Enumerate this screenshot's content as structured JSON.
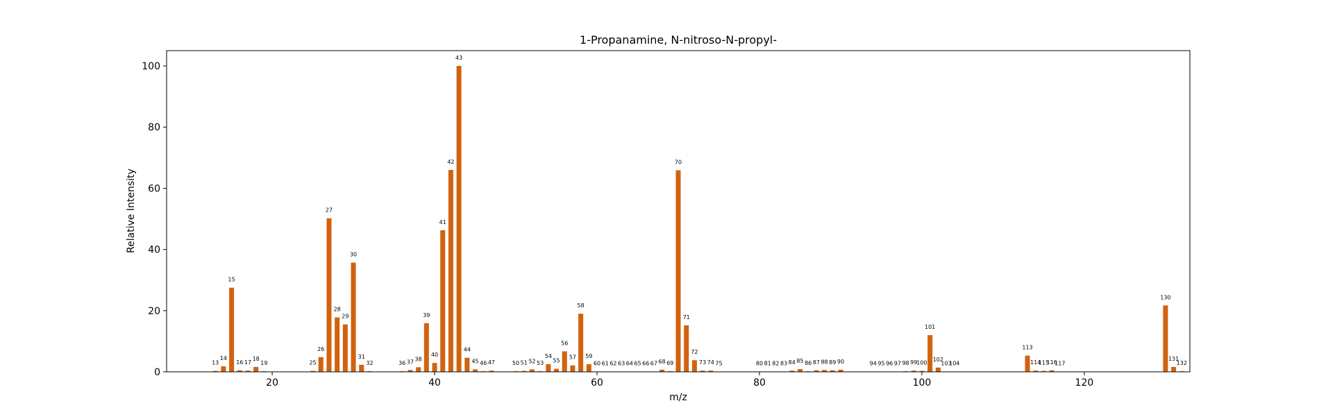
{
  "chart_data": {
    "type": "bar",
    "title": "1-Propanamine, N-nitroso-N-propyl-",
    "xlabel": "m/z",
    "ylabel": "Relative Intensity",
    "xlim": [
      7,
      133
    ],
    "ylim": [
      0,
      105
    ],
    "xticks": [
      20,
      40,
      60,
      80,
      100,
      120
    ],
    "yticks": [
      0,
      20,
      40,
      60,
      80,
      100
    ],
    "bar_color": "#d2620f",
    "x": [
      13,
      14,
      15,
      16,
      17,
      18,
      19,
      25,
      26,
      27,
      28,
      29,
      30,
      31,
      32,
      36,
      37,
      38,
      39,
      40,
      41,
      42,
      43,
      44,
      45,
      46,
      47,
      50,
      51,
      52,
      53,
      54,
      55,
      56,
      57,
      58,
      59,
      60,
      61,
      62,
      63,
      64,
      65,
      66,
      67,
      68,
      69,
      70,
      71,
      72,
      73,
      74,
      75,
      80,
      81,
      82,
      83,
      84,
      85,
      86,
      87,
      88,
      89,
      90,
      94,
      95,
      96,
      97,
      98,
      99,
      100,
      101,
      102,
      103,
      104,
      113,
      114,
      115,
      116,
      117,
      130,
      131,
      132
    ],
    "values": [
      0.3,
      1.8,
      27.5,
      0.5,
      0.4,
      1.6,
      0.2,
      0.3,
      4.8,
      50.2,
      17.8,
      15.5,
      35.7,
      2.3,
      0.2,
      0.2,
      0.6,
      1.5,
      15.9,
      2.9,
      46.3,
      66.0,
      100.0,
      4.6,
      0.8,
      0.2,
      0.4,
      0.2,
      0.3,
      0.8,
      0.2,
      2.5,
      1.0,
      6.7,
      2.1,
      19.0,
      2.5,
      0.1,
      0.1,
      0.1,
      0.1,
      0.1,
      0.1,
      0.1,
      0.1,
      0.7,
      0.2,
      65.9,
      15.2,
      3.8,
      0.4,
      0.4,
      0.1,
      0.1,
      0.1,
      0.1,
      0.1,
      0.4,
      0.9,
      0.2,
      0.5,
      0.6,
      0.5,
      0.7,
      0.1,
      0.1,
      0.1,
      0.1,
      0.2,
      0.4,
      0.3,
      12.0,
      1.4,
      0.1,
      0.1,
      5.3,
      0.4,
      0.3,
      0.5,
      0.1,
      21.7,
      1.6,
      0.2
    ],
    "labels": [
      "13",
      "14",
      "15",
      "16",
      "17",
      "18",
      "19",
      "25",
      "26",
      "27",
      "28",
      "29",
      "30",
      "31",
      "32",
      "36",
      "37",
      "38",
      "39",
      "40",
      "41",
      "42",
      "43",
      "44",
      "45",
      "46",
      "47",
      "50",
      "51",
      "52",
      "53",
      "54",
      "55",
      "56",
      "57",
      "58",
      "59",
      "60",
      "61",
      "62",
      "63",
      "64",
      "65",
      "66",
      "67",
      "68",
      "69",
      "70",
      "71",
      "72",
      "73",
      "74",
      "75",
      "80",
      "81",
      "82",
      "83",
      "84",
      "85",
      "86",
      "87",
      "88",
      "89",
      "90",
      "94",
      "95",
      "96",
      "97",
      "98",
      "99",
      "100",
      "101",
      "102",
      "103",
      "104",
      "113",
      "114",
      "115",
      "116",
      "117",
      "130",
      "131",
      "132"
    ],
    "grid": false,
    "legend": "none"
  }
}
